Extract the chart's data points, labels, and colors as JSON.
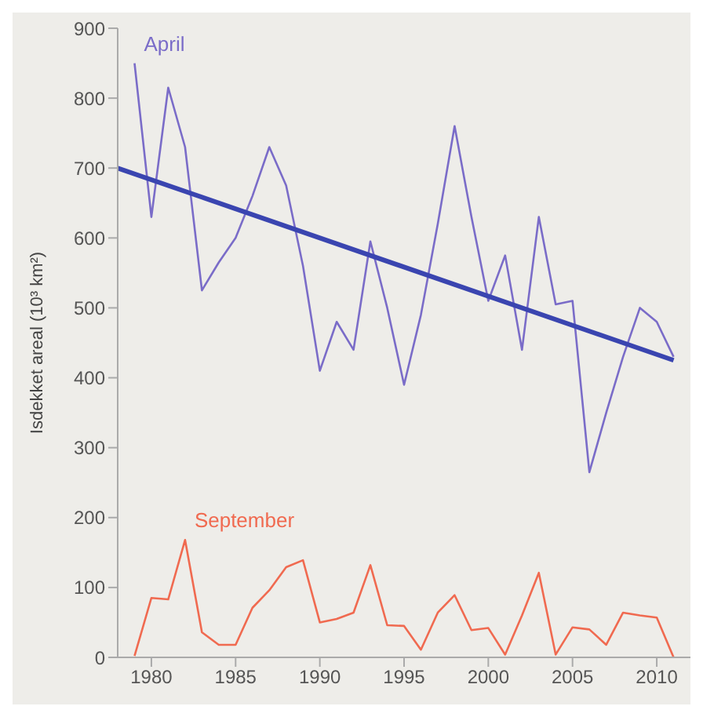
{
  "chart_data": {
    "type": "line",
    "ylabel": "Isdekket areal (10³ km²)",
    "x": [
      1979,
      1980,
      1981,
      1982,
      1983,
      1984,
      1985,
      1986,
      1987,
      1988,
      1989,
      1990,
      1991,
      1992,
      1993,
      1994,
      1995,
      1996,
      1997,
      1998,
      1999,
      2000,
      2001,
      2002,
      2003,
      2004,
      2005,
      2006,
      2007,
      2008,
      2009,
      2010,
      2011
    ],
    "series": [
      {
        "name": "April",
        "color": "#7a6cc8",
        "values": [
          850,
          630,
          815,
          730,
          525,
          565,
          600,
          660,
          730,
          675,
          560,
          410,
          480,
          440,
          595,
          500,
          390,
          490,
          620,
          760,
          630,
          510,
          575,
          440,
          630,
          505,
          510,
          265,
          350,
          430,
          500,
          480,
          430
        ]
      },
      {
        "type": "line",
        "color": "#3a45b0",
        "x": [
          1978,
          2011
        ],
        "values": [
          700,
          425
        ]
      },
      {
        "name": "September",
        "color": "#f06a50",
        "values": [
          2,
          85,
          83,
          168,
          36,
          18,
          18,
          71,
          96,
          129,
          139,
          50,
          55,
          64,
          132,
          46,
          45,
          11,
          64,
          89,
          39,
          42,
          4,
          60,
          121,
          4,
          43,
          40,
          18,
          64,
          60,
          57,
          0
        ]
      }
    ],
    "xlim": [
      1978,
      2012
    ],
    "xticks": [
      1980,
      1985,
      1990,
      1995,
      2000,
      2005,
      2010
    ],
    "ylim": [
      0,
      900
    ],
    "yticks": [
      0,
      100,
      200,
      300,
      400,
      500,
      600,
      700,
      800,
      900
    ],
    "grid": false,
    "legend": false,
    "marker": "none"
  }
}
